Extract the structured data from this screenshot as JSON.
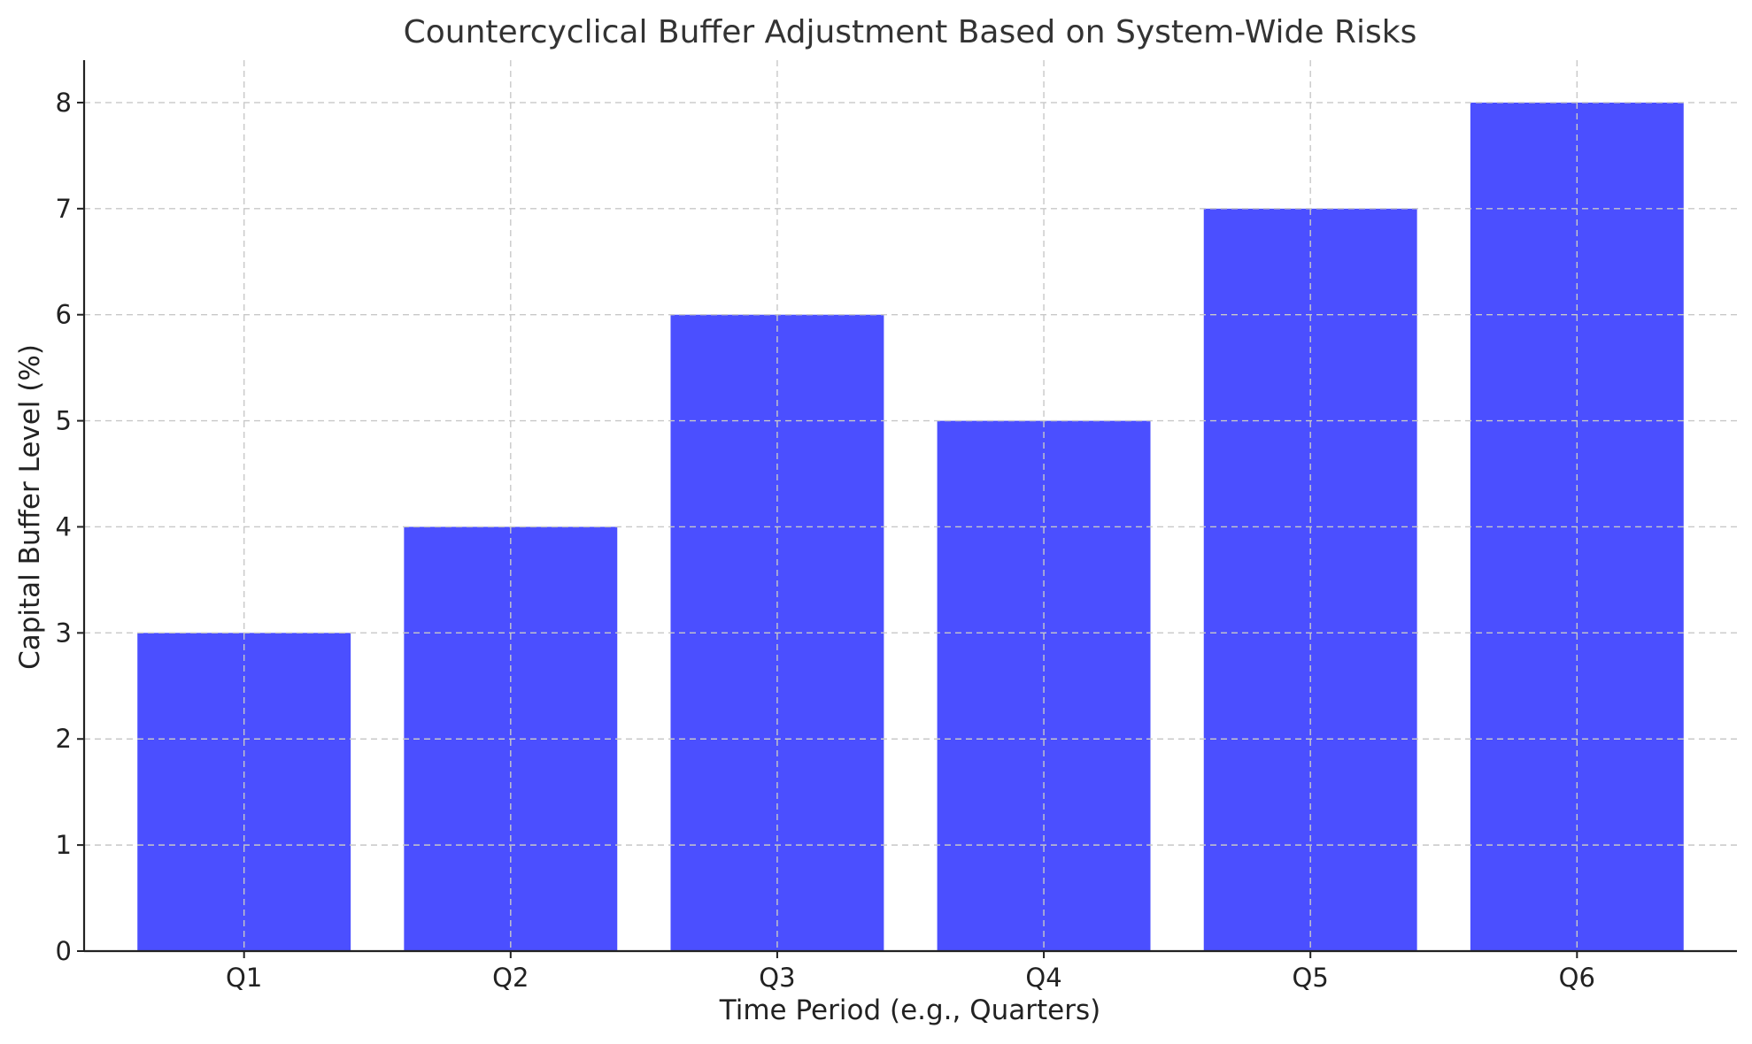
{
  "chart_data": {
    "type": "bar",
    "title": "Countercyclical Buffer Adjustment Based on System-Wide Risks",
    "xlabel": "Time Period (e.g., Quarters)",
    "ylabel": "Capital Buffer Level (%)",
    "categories": [
      "Q1",
      "Q2",
      "Q3",
      "Q4",
      "Q5",
      "Q6"
    ],
    "values": [
      3,
      4,
      6,
      5,
      7,
      8
    ],
    "ylim": [
      0,
      8.4
    ],
    "yticks": [
      0,
      1,
      2,
      3,
      4,
      5,
      6,
      7,
      8
    ],
    "grid": true,
    "legend": "none",
    "bar_color": "#4b4fff",
    "grid_color": "#c8c8c8"
  }
}
